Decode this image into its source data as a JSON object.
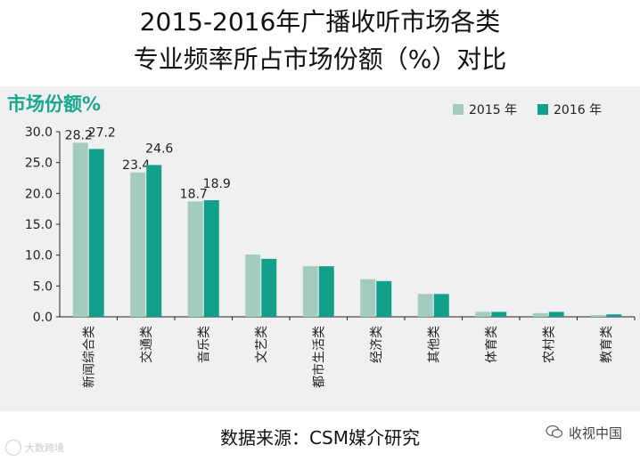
{
  "header": {
    "title_line1": "2015-2016年广播收听市场各类",
    "title_line2": "专业频率所占市场份额（%）对比"
  },
  "footer": {
    "source": "数据来源：CSM媒介研究",
    "watermark_left": "大数跨境",
    "watermark_right": "收视中国"
  },
  "colors": {
    "series_2015": "#a3cbbf",
    "series_2016": "#13a08b",
    "ytitle": "#1aa58f"
  },
  "icons": {
    "left": "weibo-icon",
    "right": "wechat-icon"
  },
  "chart_data": {
    "type": "bar",
    "ytitle": "市场份额%",
    "categories": [
      "新闻综合类",
      "交通类",
      "音乐类",
      "文艺类",
      "都市生活类",
      "经济类",
      "其他类",
      "体育类",
      "农村类",
      "教育类"
    ],
    "series": [
      {
        "name": "2015 年",
        "values": [
          28.2,
          23.4,
          18.7,
          10.1,
          8.2,
          6.1,
          3.7,
          0.8,
          0.6,
          0.3
        ]
      },
      {
        "name": "2016 年",
        "values": [
          27.2,
          24.6,
          18.9,
          9.4,
          8.2,
          5.8,
          3.7,
          0.8,
          0.8,
          0.4
        ]
      }
    ],
    "labeled_categories": 3,
    "ylim": [
      0,
      30
    ],
    "yticks": [
      "0.0",
      "5.0",
      "10.0",
      "15.0",
      "20.0",
      "25.0",
      "30.0"
    ],
    "ytick_values": [
      0,
      5,
      10,
      15,
      20,
      25,
      30
    ],
    "grid": false,
    "legend": "top-right"
  }
}
